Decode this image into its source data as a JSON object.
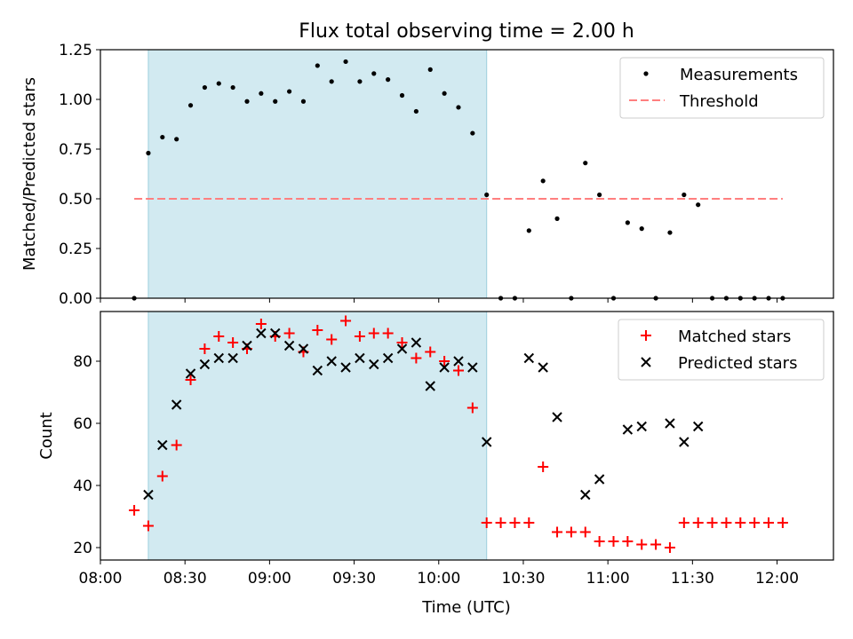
{
  "chart_data": [
    {
      "type": "scatter",
      "title": "Flux total observing time = 2.00 h",
      "xlabel": "",
      "ylabel": "Matched/Predicted stars",
      "xlim": [
        "08:00",
        "12:20"
      ],
      "ylim": [
        0,
        1.25
      ],
      "yticks": [
        "0.00",
        "0.25",
        "0.50",
        "0.75",
        "1.00",
        "1.25"
      ],
      "shaded_interval": [
        "08:17",
        "10:17"
      ],
      "legend_position": "upper right",
      "legend": [
        "Measurements",
        "Threshold"
      ],
      "threshold": {
        "name": "Threshold",
        "value": 0.5,
        "x_range": [
          "08:12",
          "12:02"
        ],
        "color": "#ff7f7f"
      },
      "series": [
        {
          "name": "Measurements",
          "color": "#000000",
          "points": [
            [
              "08:12",
              0.0
            ],
            [
              "08:17",
              0.73
            ],
            [
              "08:22",
              0.81
            ],
            [
              "08:27",
              0.8
            ],
            [
              "08:32",
              0.97
            ],
            [
              "08:37",
              1.06
            ],
            [
              "08:42",
              1.08
            ],
            [
              "08:47",
              1.06
            ],
            [
              "08:52",
              0.99
            ],
            [
              "08:57",
              1.03
            ],
            [
              "09:02",
              0.99
            ],
            [
              "09:07",
              1.04
            ],
            [
              "09:12",
              0.99
            ],
            [
              "09:17",
              1.17
            ],
            [
              "09:22",
              1.09
            ],
            [
              "09:27",
              1.19
            ],
            [
              "09:32",
              1.09
            ],
            [
              "09:37",
              1.13
            ],
            [
              "09:42",
              1.1
            ],
            [
              "09:47",
              1.02
            ],
            [
              "09:52",
              0.94
            ],
            [
              "09:57",
              1.15
            ],
            [
              "10:02",
              1.03
            ],
            [
              "10:07",
              0.96
            ],
            [
              "10:12",
              0.83
            ],
            [
              "10:17",
              0.52
            ],
            [
              "10:22",
              0.0
            ],
            [
              "10:27",
              0.0
            ],
            [
              "10:32",
              0.34
            ],
            [
              "10:37",
              0.59
            ],
            [
              "10:42",
              0.4
            ],
            [
              "10:47",
              0.0
            ],
            [
              "10:52",
              0.68
            ],
            [
              "10:57",
              0.52
            ],
            [
              "11:02",
              0.0
            ],
            [
              "11:07",
              0.38
            ],
            [
              "11:12",
              0.35
            ],
            [
              "11:17",
              0.0
            ],
            [
              "11:22",
              0.33
            ],
            [
              "11:27",
              0.52
            ],
            [
              "11:32",
              0.47
            ],
            [
              "11:37",
              0.0
            ],
            [
              "11:42",
              0.0
            ],
            [
              "11:47",
              0.0
            ],
            [
              "11:52",
              0.0
            ],
            [
              "11:57",
              0.0
            ],
            [
              "12:02",
              0.0
            ]
          ]
        }
      ]
    },
    {
      "type": "scatter",
      "xlabel": "Time (UTC)",
      "ylabel": "Count",
      "xlim": [
        "08:00",
        "12:20"
      ],
      "ylim": [
        16,
        96
      ],
      "xticks": [
        "08:00",
        "08:30",
        "09:00",
        "09:30",
        "10:00",
        "10:30",
        "11:00",
        "11:30",
        "12:00"
      ],
      "yticks": [
        "20",
        "40",
        "60",
        "80"
      ],
      "shaded_interval": [
        "08:17",
        "10:17"
      ],
      "legend_position": "upper right",
      "legend": [
        "Matched stars",
        "Predicted stars"
      ],
      "series": [
        {
          "name": "Matched stars",
          "marker": "+",
          "color": "#ff0000",
          "points": [
            [
              "08:12",
              32
            ],
            [
              "08:17",
              27
            ],
            [
              "08:22",
              43
            ],
            [
              "08:27",
              53
            ],
            [
              "08:32",
              74
            ],
            [
              "08:37",
              84
            ],
            [
              "08:42",
              88
            ],
            [
              "08:47",
              86
            ],
            [
              "08:52",
              84
            ],
            [
              "08:57",
              92
            ],
            [
              "09:02",
              88
            ],
            [
              "09:07",
              89
            ],
            [
              "09:12",
              83
            ],
            [
              "09:17",
              90
            ],
            [
              "09:22",
              87
            ],
            [
              "09:27",
              93
            ],
            [
              "09:32",
              88
            ],
            [
              "09:37",
              89
            ],
            [
              "09:42",
              89
            ],
            [
              "09:47",
              86
            ],
            [
              "09:52",
              81
            ],
            [
              "09:57",
              83
            ],
            [
              "10:02",
              80
            ],
            [
              "10:07",
              77
            ],
            [
              "10:12",
              65
            ],
            [
              "10:17",
              28
            ],
            [
              "10:22",
              28
            ],
            [
              "10:27",
              28
            ],
            [
              "10:32",
              28
            ],
            [
              "10:37",
              46
            ],
            [
              "10:42",
              25
            ],
            [
              "10:47",
              25
            ],
            [
              "10:52",
              25
            ],
            [
              "10:57",
              22
            ],
            [
              "11:02",
              22
            ],
            [
              "11:07",
              22
            ],
            [
              "11:12",
              21
            ],
            [
              "11:17",
              21
            ],
            [
              "11:22",
              20
            ],
            [
              "11:27",
              28
            ],
            [
              "11:32",
              28
            ],
            [
              "11:37",
              28
            ],
            [
              "11:42",
              28
            ],
            [
              "11:47",
              28
            ],
            [
              "11:52",
              28
            ],
            [
              "11:57",
              28
            ],
            [
              "12:02",
              28
            ]
          ]
        },
        {
          "name": "Predicted stars",
          "marker": "x",
          "color": "#000000",
          "points": [
            [
              "08:17",
              37
            ],
            [
              "08:22",
              53
            ],
            [
              "08:27",
              66
            ],
            [
              "08:32",
              76
            ],
            [
              "08:37",
              79
            ],
            [
              "08:42",
              81
            ],
            [
              "08:47",
              81
            ],
            [
              "08:52",
              85
            ],
            [
              "08:57",
              89
            ],
            [
              "09:02",
              89
            ],
            [
              "09:07",
              85
            ],
            [
              "09:12",
              84
            ],
            [
              "09:17",
              77
            ],
            [
              "09:22",
              80
            ],
            [
              "09:27",
              78
            ],
            [
              "09:32",
              81
            ],
            [
              "09:37",
              79
            ],
            [
              "09:42",
              81
            ],
            [
              "09:47",
              84
            ],
            [
              "09:52",
              86
            ],
            [
              "09:57",
              72
            ],
            [
              "10:02",
              78
            ],
            [
              "10:07",
              80
            ],
            [
              "10:12",
              78
            ],
            [
              "10:17",
              54
            ],
            [
              "10:32",
              81
            ],
            [
              "10:37",
              78
            ],
            [
              "10:42",
              62
            ],
            [
              "10:52",
              37
            ],
            [
              "10:57",
              42
            ],
            [
              "11:07",
              58
            ],
            [
              "11:12",
              59
            ],
            [
              "11:22",
              60
            ],
            [
              "11:27",
              54
            ],
            [
              "11:32",
              59
            ]
          ]
        }
      ]
    }
  ]
}
